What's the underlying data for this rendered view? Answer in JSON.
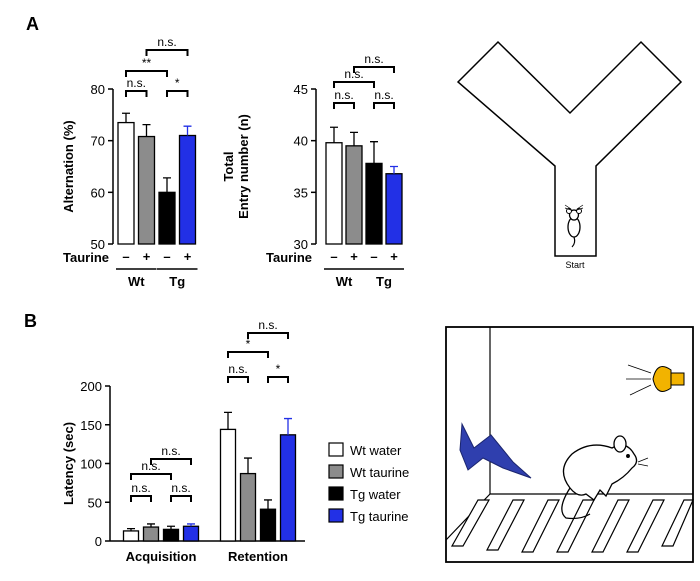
{
  "panels": {
    "a": "A",
    "b": "B"
  },
  "colors": {
    "wt_water": "#ffffff",
    "wt_taurine": "#8c8c8c",
    "tg_water": "#000000",
    "tg_taurine": "#2230e6",
    "speaker": "#f2b300"
  },
  "icons": {
    "maze": "y-maze-with-mouse-icon",
    "shock_box": "shock-chamber-icon"
  },
  "maze": {
    "start_label": "Start"
  },
  "legend": {
    "entries": [
      {
        "label": "Wt water",
        "color": "#ffffff"
      },
      {
        "label": "Wt taurine",
        "color": "#8c8c8c"
      },
      {
        "label": "Tg water",
        "color": "#000000"
      },
      {
        "label": "Tg taurine",
        "color": "#2230e6"
      }
    ]
  },
  "chart_data": [
    {
      "type": "bar",
      "ylabel": "Alternation (%)",
      "ylim": [
        50,
        80
      ],
      "yticks": [
        "50",
        "60",
        "70",
        "80"
      ],
      "x_row_label": "Taurine",
      "treatment": [
        "–",
        "+",
        "–",
        "+"
      ],
      "groups": [
        "Wt",
        "Tg"
      ],
      "values": [
        73.5,
        70.8,
        60.0,
        71.0
      ],
      "errors": [
        1.8,
        2.3,
        2.8,
        1.8
      ],
      "significance": [
        {
          "from": 0,
          "to": 1,
          "label": "n.s."
        },
        {
          "from": 2,
          "to": 3,
          "label": "*"
        },
        {
          "from": 0,
          "to": 2,
          "label": "**"
        },
        {
          "from": 1,
          "to": 3,
          "label": "n.s."
        }
      ]
    },
    {
      "type": "bar",
      "ylabel": [
        "Total",
        "Entry number (n)"
      ],
      "ylim": [
        30,
        45
      ],
      "yticks": [
        "30",
        "35",
        "40",
        "45"
      ],
      "x_row_label": "Taurine",
      "treatment": [
        "–",
        "+",
        "–",
        "+"
      ],
      "groups": [
        "Wt",
        "Tg"
      ],
      "values": [
        39.8,
        39.5,
        37.8,
        36.8
      ],
      "errors": [
        1.5,
        1.3,
        2.1,
        0.7
      ],
      "significance": [
        {
          "from": 0,
          "to": 1,
          "label": "n.s."
        },
        {
          "from": 2,
          "to": 3,
          "label": "n.s."
        },
        {
          "from": 0,
          "to": 2,
          "label": "n.s."
        },
        {
          "from": 1,
          "to": 3,
          "label": "n.s."
        }
      ]
    },
    {
      "type": "bar",
      "ylabel": "Latency (sec)",
      "ylim": [
        0,
        200
      ],
      "yticks": [
        "0",
        "50",
        "100",
        "150",
        "200"
      ],
      "categories": [
        "Acquisition",
        "Retention"
      ],
      "series": [
        {
          "name": "Wt water",
          "values": [
            13,
            144
          ],
          "errors": [
            3,
            22
          ]
        },
        {
          "name": "Wt taurine",
          "values": [
            18,
            87
          ],
          "errors": [
            4,
            20
          ]
        },
        {
          "name": "Tg water",
          "values": [
            15,
            41
          ],
          "errors": [
            4,
            12
          ]
        },
        {
          "name": "Tg taurine",
          "values": [
            19,
            137
          ],
          "errors": [
            3,
            21
          ]
        }
      ],
      "significance": [
        {
          "group": 0,
          "from": 0,
          "to": 1,
          "label": "n.s."
        },
        {
          "group": 0,
          "from": 2,
          "to": 3,
          "label": "n.s."
        },
        {
          "group": 0,
          "from": 0,
          "to": 2,
          "label": "n.s."
        },
        {
          "group": 0,
          "from": 1,
          "to": 3,
          "label": "n.s."
        },
        {
          "group": 1,
          "from": 0,
          "to": 1,
          "label": "n.s."
        },
        {
          "group": 1,
          "from": 2,
          "to": 3,
          "label": "*"
        },
        {
          "group": 1,
          "from": 0,
          "to": 2,
          "label": "*"
        },
        {
          "group": 1,
          "from": 1,
          "to": 3,
          "label": "n.s."
        }
      ]
    }
  ]
}
